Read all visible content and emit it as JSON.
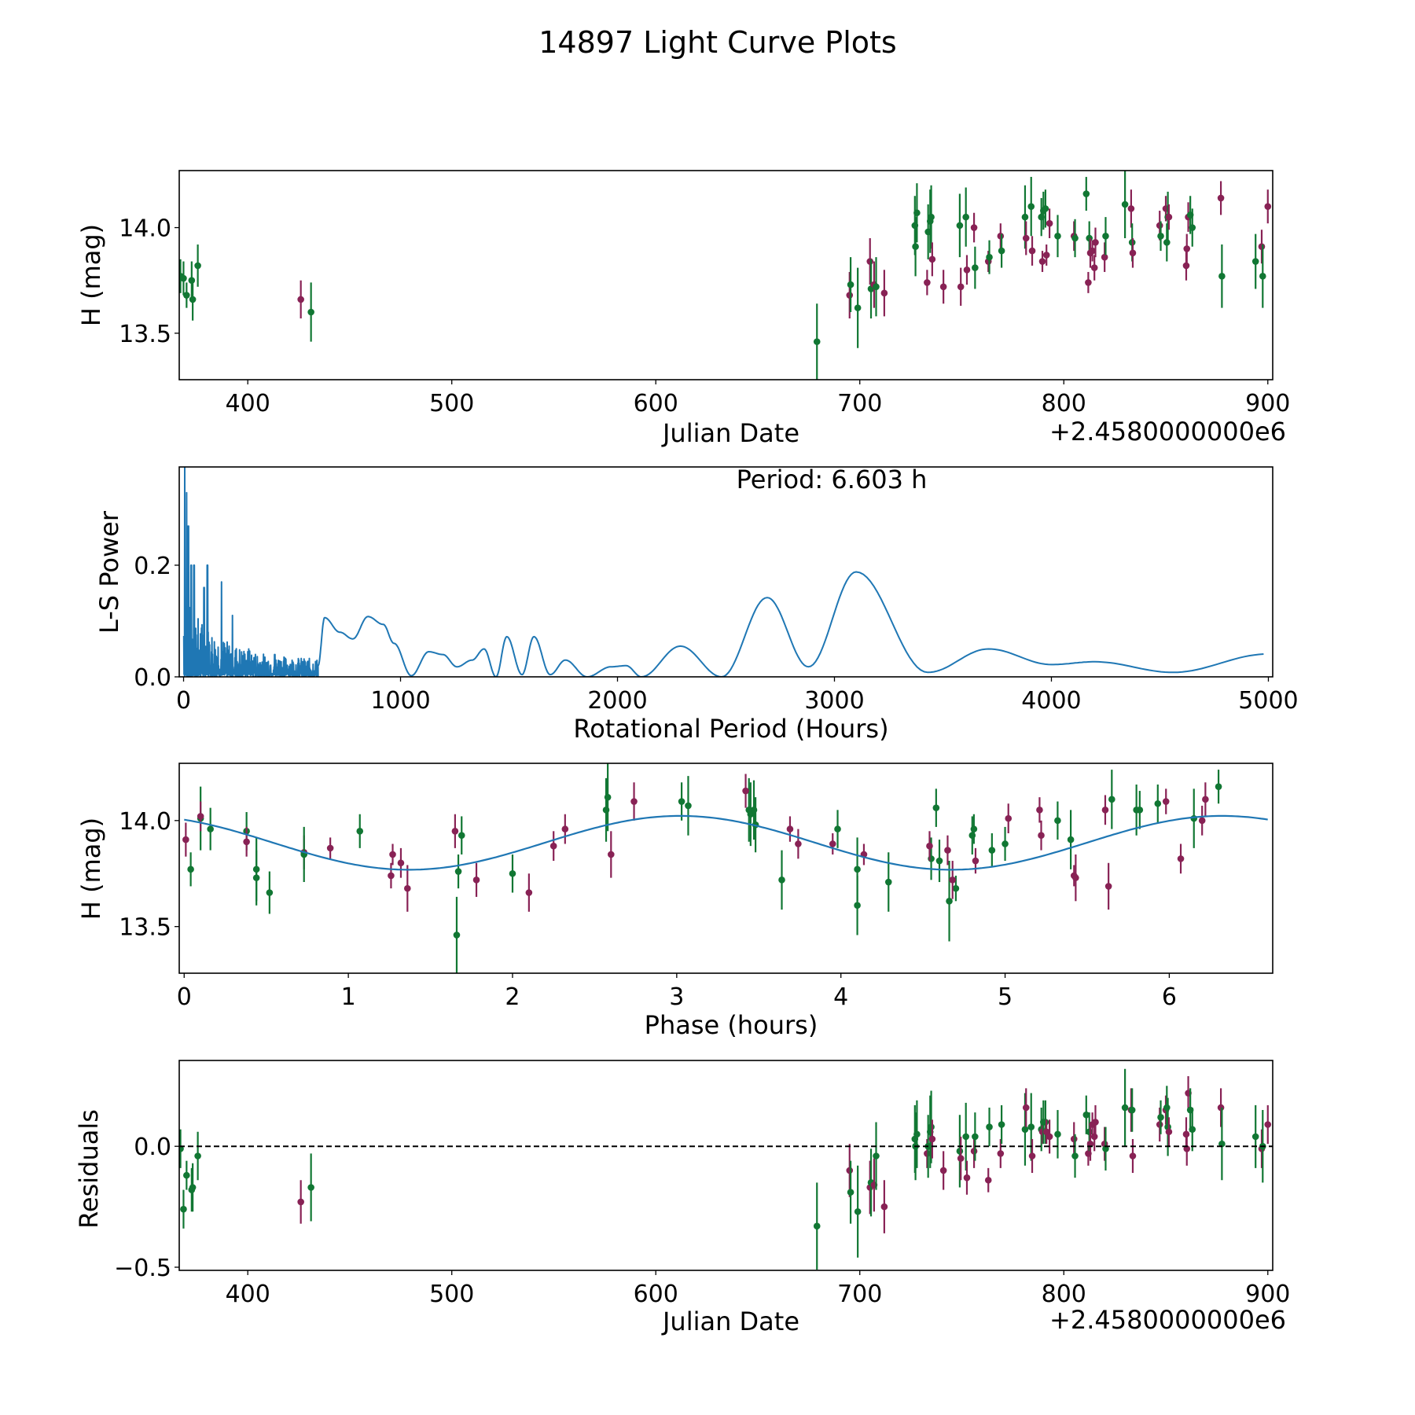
{
  "title": "14897 Light Curve Plots",
  "colors": {
    "filter_a": "#117733",
    "filter_b": "#882255",
    "model": "#1f77b4",
    "frame": "#000000"
  },
  "chart_data": [
    {
      "id": "lightcurve",
      "type": "scatter",
      "title": "",
      "xlabel": "Julian Date",
      "ylabel": "H (mag)",
      "x_offset_label": "+2.4580000000e6",
      "xlim": [
        366.4,
        902.4
      ],
      "ylim": [
        13.28,
        14.27
      ],
      "xticks": [
        400,
        500,
        600,
        700,
        800,
        900
      ],
      "xtick_labels": [
        "400",
        "500",
        "600",
        "700",
        "800",
        "900"
      ],
      "yticks": [
        13.5,
        14.0
      ],
      "ytick_labels": [
        "13.5",
        "14.0"
      ],
      "series_ref": "observations"
    },
    {
      "id": "periodogram",
      "type": "line",
      "xlabel": "Rotational Period (Hours)",
      "ylabel": "L-S Power",
      "annotation": "Period: 6.603 h",
      "xlim": [
        -20,
        5020
      ],
      "ylim": [
        0,
        0.376
      ],
      "xticks": [
        0,
        1000,
        2000,
        3000,
        4000,
        5000
      ],
      "xtick_labels": [
        "0",
        "1000",
        "2000",
        "3000",
        "4000",
        "5000"
      ],
      "yticks": [
        0.0,
        0.2
      ],
      "ytick_labels": [
        "0.0",
        "0.2"
      ],
      "smooth_peaks": [
        {
          "x": 650,
          "y": 0.106
        },
        {
          "x": 720,
          "y": 0.08
        },
        {
          "x": 780,
          "y": 0.068
        },
        {
          "x": 850,
          "y": 0.108
        },
        {
          "x": 920,
          "y": 0.094
        },
        {
          "x": 970,
          "y": 0.06
        },
        {
          "x": 1130,
          "y": 0.045
        },
        {
          "x": 1195,
          "y": 0.04
        },
        {
          "x": 1260,
          "y": 0.018
        },
        {
          "x": 1330,
          "y": 0.03
        },
        {
          "x": 1385,
          "y": 0.05
        },
        {
          "x": 1490,
          "y": 0.072
        },
        {
          "x": 1615,
          "y": 0.072
        },
        {
          "x": 1760,
          "y": 0.03
        },
        {
          "x": 1970,
          "y": 0.018
        },
        {
          "x": 2040,
          "y": 0.02
        },
        {
          "x": 2290,
          "y": 0.055
        },
        {
          "x": 2690,
          "y": 0.142
        },
        {
          "x": 3100,
          "y": 0.188
        },
        {
          "x": 3710,
          "y": 0.05
        },
        {
          "x": 4200,
          "y": 0.027
        },
        {
          "x": 5000,
          "y": 0.041
        }
      ],
      "smooth_troughs": [
        {
          "x": 1050,
          "y": 0.002
        },
        {
          "x": 1440,
          "y": 0.0
        },
        {
          "x": 1560,
          "y": 0.004
        },
        {
          "x": 1690,
          "y": 0.004
        },
        {
          "x": 1860,
          "y": 0.0
        },
        {
          "x": 2110,
          "y": 0.0
        },
        {
          "x": 2480,
          "y": 0.0
        },
        {
          "x": 2880,
          "y": 0.018
        },
        {
          "x": 3430,
          "y": 0.008
        },
        {
          "x": 4000,
          "y": 0.022
        },
        {
          "x": 4560,
          "y": 0.008
        }
      ],
      "noise_region": {
        "x_end": 620,
        "max_power": 0.376,
        "notable_spikes": [
          {
            "x": 5,
            "y": 0.376
          },
          {
            "x": 14,
            "y": 0.33
          },
          {
            "x": 22,
            "y": 0.27
          },
          {
            "x": 35,
            "y": 0.2
          },
          {
            "x": 48,
            "y": 0.2
          },
          {
            "x": 95,
            "y": 0.16
          },
          {
            "x": 110,
            "y": 0.2
          },
          {
            "x": 175,
            "y": 0.17
          },
          {
            "x": 225,
            "y": 0.11
          },
          {
            "x": 300,
            "y": 0.05
          },
          {
            "x": 420,
            "y": 0.04
          }
        ]
      }
    },
    {
      "id": "phased",
      "type": "scatter",
      "xlabel": "Phase (hours)",
      "ylabel": "H (mag)",
      "xlim": [
        -0.03,
        6.63
      ],
      "ylim": [
        13.28,
        14.27
      ],
      "xticks": [
        0,
        1,
        2,
        3,
        4,
        5,
        6
      ],
      "xtick_labels": [
        "0",
        "1",
        "2",
        "3",
        "4",
        "5",
        "6"
      ],
      "yticks": [
        13.5,
        14.0
      ],
      "ytick_labels": [
        "13.5",
        "14.0"
      ],
      "model": {
        "period_h": 6.603,
        "mean": 13.895,
        "amplitude": 0.127,
        "peak_phase_h": 3.02,
        "harmonics": 2
      }
    },
    {
      "id": "residuals",
      "type": "scatter",
      "xlabel": "Julian Date",
      "ylabel": "Residuals",
      "x_offset_label": "+2.4580000000e6",
      "xlim": [
        366.4,
        902.4
      ],
      "ylim": [
        -0.513,
        0.355
      ],
      "xticks": [
        400,
        500,
        600,
        700,
        800,
        900
      ],
      "xtick_labels": [
        "400",
        "500",
        "600",
        "700",
        "800",
        "900"
      ],
      "yticks": [
        -0.5,
        0.0
      ],
      "ytick_labels": [
        "−0.5",
        "0.0"
      ],
      "zero_line": true
    }
  ],
  "observations": [
    {
      "jd": 367.0,
      "mag": 13.77,
      "err": 0.08,
      "f": "a",
      "ph": 0.04,
      "res": -0.01
    },
    {
      "jd": 368.5,
      "mag": 13.76,
      "err": 0.08,
      "f": "a",
      "ph": 1.67,
      "res": -0.26
    },
    {
      "jd": 370.0,
      "mag": 13.68,
      "err": 0.06,
      "f": "a",
      "ph": 4.7,
      "res": -0.12
    },
    {
      "jd": 372.5,
      "mag": 13.75,
      "err": 0.09,
      "f": "a",
      "ph": 2.0,
      "res": -0.18
    },
    {
      "jd": 373.0,
      "mag": 13.66,
      "err": 0.1,
      "f": "a",
      "ph": 0.52,
      "res": -0.17
    },
    {
      "jd": 375.5,
      "mag": 13.82,
      "err": 0.1,
      "f": "a",
      "ph": 4.55,
      "res": -0.04
    },
    {
      "jd": 426.0,
      "mag": 13.66,
      "err": 0.09,
      "f": "b",
      "ph": 2.1,
      "res": -0.23
    },
    {
      "jd": 431.0,
      "mag": 13.6,
      "err": 0.14,
      "f": "a",
      "ph": 4.1,
      "res": -0.17
    },
    {
      "jd": 679.0,
      "mag": 13.46,
      "err": 0.18,
      "f": "a",
      "ph": 1.66,
      "res": -0.33
    },
    {
      "jd": 695.0,
      "mag": 13.68,
      "err": 0.11,
      "f": "b",
      "ph": 1.36,
      "res": -0.1
    },
    {
      "jd": 695.5,
      "mag": 13.73,
      "err": 0.13,
      "f": "a",
      "ph": 0.44,
      "res": -0.19
    },
    {
      "jd": 699.0,
      "mag": 13.62,
      "err": 0.19,
      "f": "a",
      "ph": 4.66,
      "res": -0.27
    },
    {
      "jd": 705.0,
      "mag": 13.84,
      "err": 0.11,
      "f": "b",
      "ph": 2.6,
      "res": -0.17
    },
    {
      "jd": 705.5,
      "mag": 13.71,
      "err": 0.14,
      "f": "a",
      "ph": 4.29,
      "res": -0.15
    },
    {
      "jd": 707.0,
      "mag": 13.73,
      "err": 0.11,
      "f": "b",
      "ph": 5.43,
      "res": -0.16
    },
    {
      "jd": 708.0,
      "mag": 13.72,
      "err": 0.14,
      "f": "a",
      "ph": 3.64,
      "res": -0.04
    },
    {
      "jd": 712.0,
      "mag": 13.69,
      "err": 0.11,
      "f": "b",
      "ph": 5.63,
      "res": -0.25
    },
    {
      "jd": 727.0,
      "mag": 14.01,
      "err": 0.14,
      "f": "a",
      "ph": 6.15,
      "res": 0.03
    },
    {
      "jd": 727.3,
      "mag": 13.91,
      "err": 0.14,
      "f": "a",
      "ph": 5.4,
      "res": 0.0
    },
    {
      "jd": 728.0,
      "mag": 14.07,
      "err": 0.14,
      "f": "a",
      "ph": 3.07,
      "res": 0.05
    },
    {
      "jd": 733.0,
      "mag": 13.74,
      "err": 0.06,
      "f": "b",
      "ph": 1.26,
      "res": -0.03
    },
    {
      "jd": 733.5,
      "mag": 13.98,
      "err": 0.13,
      "f": "a",
      "ph": 3.48,
      "res": 0.0
    },
    {
      "jd": 734.5,
      "mag": 14.03,
      "err": 0.15,
      "f": "a",
      "ph": 3.45,
      "res": 0.06
    },
    {
      "jd": 735.0,
      "mag": 14.05,
      "err": 0.15,
      "f": "a",
      "ph": 2.57,
      "res": 0.08
    },
    {
      "jd": 735.5,
      "mag": 13.85,
      "err": 0.08,
      "f": "b",
      "ph": 0.73,
      "res": 0.03
    },
    {
      "jd": 741.0,
      "mag": 13.72,
      "err": 0.08,
      "f": "b",
      "ph": 1.78,
      "res": -0.1
    },
    {
      "jd": 749.0,
      "mag": 14.01,
      "err": 0.15,
      "f": "a",
      "ph": 0.1,
      "res": -0.02
    },
    {
      "jd": 749.5,
      "mag": 13.72,
      "err": 0.09,
      "f": "b",
      "ph": 4.68,
      "res": -0.05
    },
    {
      "jd": 752.0,
      "mag": 14.05,
      "err": 0.14,
      "f": "a",
      "ph": 3.47,
      "res": 0.04
    },
    {
      "jd": 752.5,
      "mag": 13.8,
      "err": 0.07,
      "f": "b",
      "ph": 1.32,
      "res": -0.13
    },
    {
      "jd": 756.0,
      "mag": 14.0,
      "err": 0.07,
      "f": "b",
      "ph": 6.2,
      "res": -0.02
    },
    {
      "jd": 756.5,
      "mag": 13.81,
      "err": 0.1,
      "f": "a",
      "ph": 4.6,
      "res": 0.04
    },
    {
      "jd": 763.0,
      "mag": 13.84,
      "err": 0.05,
      "f": "b",
      "ph": 4.14,
      "res": -0.14
    },
    {
      "jd": 763.5,
      "mag": 13.86,
      "err": 0.08,
      "f": "a",
      "ph": 4.92,
      "res": 0.08
    },
    {
      "jd": 769.0,
      "mag": 13.96,
      "err": 0.06,
      "f": "b",
      "ph": 3.69,
      "res": -0.03
    },
    {
      "jd": 769.5,
      "mag": 13.89,
      "err": 0.08,
      "f": "a",
      "ph": 5.0,
      "res": 0.09
    },
    {
      "jd": 781.0,
      "mag": 14.05,
      "err": 0.15,
      "f": "a",
      "ph": 3.44,
      "res": 0.07
    },
    {
      "jd": 781.5,
      "mag": 13.95,
      "err": 0.08,
      "f": "b",
      "ph": 1.65,
      "res": 0.16
    },
    {
      "jd": 784.0,
      "mag": 14.1,
      "err": 0.14,
      "f": "a",
      "ph": 5.65,
      "res": 0.08
    },
    {
      "jd": 784.5,
      "mag": 13.89,
      "err": 0.07,
      "f": "b",
      "ph": 3.74,
      "res": -0.04
    },
    {
      "jd": 789.0,
      "mag": 14.05,
      "err": 0.09,
      "f": "a",
      "ph": 5.82,
      "res": 0.07
    },
    {
      "jd": 789.5,
      "mag": 13.84,
      "err": 0.05,
      "f": "b",
      "ph": 1.27,
      "res": 0.06
    },
    {
      "jd": 790.0,
      "mag": 14.08,
      "err": 0.09,
      "f": "a",
      "ph": 5.93,
      "res": 0.1
    },
    {
      "jd": 791.0,
      "mag": 14.09,
      "err": 0.09,
      "f": "a",
      "ph": 3.03,
      "res": 0.1
    },
    {
      "jd": 791.5,
      "mag": 13.87,
      "err": 0.05,
      "f": "b",
      "ph": 0.89,
      "res": 0.06
    },
    {
      "jd": 793.0,
      "mag": 14.02,
      "err": 0.07,
      "f": "b",
      "ph": 0.1,
      "res": 0.04
    },
    {
      "jd": 797.0,
      "mag": 13.96,
      "err": 0.1,
      "f": "a",
      "ph": 0.16,
      "res": 0.05
    },
    {
      "jd": 805.0,
      "mag": 13.96,
      "err": 0.07,
      "f": "b",
      "ph": 2.32,
      "res": 0.03
    },
    {
      "jd": 805.5,
      "mag": 13.95,
      "err": 0.09,
      "f": "a",
      "ph": 0.38,
      "res": -0.04
    },
    {
      "jd": 811.0,
      "mag": 14.16,
      "err": 0.08,
      "f": "a",
      "ph": 6.3,
      "res": 0.13
    },
    {
      "jd": 812.0,
      "mag": 13.74,
      "err": 0.05,
      "f": "b",
      "ph": 5.42,
      "res": -0.03
    },
    {
      "jd": 812.5,
      "mag": 13.95,
      "err": 0.08,
      "f": "a",
      "ph": 1.07,
      "res": 0.06
    },
    {
      "jd": 813.0,
      "mag": 13.88,
      "err": 0.07,
      "f": "b",
      "ph": 2.25,
      "res": 0.01
    },
    {
      "jd": 814.0,
      "mag": 13.89,
      "err": 0.05,
      "f": "b",
      "ph": 3.95,
      "res": 0.09
    },
    {
      "jd": 815.0,
      "mag": 13.81,
      "err": 0.06,
      "f": "b",
      "ph": 4.82,
      "res": 0.04
    },
    {
      "jd": 815.5,
      "mag": 13.93,
      "err": 0.07,
      "f": "b",
      "ph": 5.22,
      "res": 0.1
    },
    {
      "jd": 820.0,
      "mag": 13.86,
      "err": 0.07,
      "f": "b",
      "ph": 4.65,
      "res": 0.01
    },
    {
      "jd": 820.5,
      "mag": 13.96,
      "err": 0.09,
      "f": "a",
      "ph": 3.98,
      "res": -0.01
    },
    {
      "jd": 830.0,
      "mag": 14.11,
      "err": 0.16,
      "f": "a",
      "ph": 2.58,
      "res": 0.16
    },
    {
      "jd": 833.0,
      "mag": 14.09,
      "err": 0.09,
      "f": "b",
      "ph": 2.74,
      "res": 0.15
    },
    {
      "jd": 833.5,
      "mag": 13.93,
      "err": 0.09,
      "f": "a",
      "ph": 1.69,
      "res": 0.15
    },
    {
      "jd": 833.8,
      "mag": 13.88,
      "err": 0.07,
      "f": "b",
      "ph": 4.54,
      "res": -0.04
    },
    {
      "jd": 847.0,
      "mag": 14.01,
      "err": 0.07,
      "f": "b",
      "ph": 5.02,
      "res": 0.09
    },
    {
      "jd": 847.5,
      "mag": 13.96,
      "err": 0.07,
      "f": "a",
      "ph": 4.81,
      "res": 0.12
    },
    {
      "jd": 850.0,
      "mag": 14.09,
      "err": 0.06,
      "f": "b",
      "ph": 5.98,
      "res": 0.15
    },
    {
      "jd": 850.5,
      "mag": 13.93,
      "err": 0.09,
      "f": "a",
      "ph": 4.8,
      "res": 0.16
    },
    {
      "jd": 851.0,
      "mag": 14.05,
      "err": 0.12,
      "f": "a",
      "ph": 5.8,
      "res": 0.08
    },
    {
      "jd": 851.5,
      "mag": 14.05,
      "err": 0.06,
      "f": "b",
      "ph": 5.21,
      "res": 0.06
    },
    {
      "jd": 860.0,
      "mag": 13.82,
      "err": 0.07,
      "f": "b",
      "ph": 6.07,
      "res": 0.05
    },
    {
      "jd": 860.3,
      "mag": 13.9,
      "err": 0.07,
      "f": "b",
      "ph": 0.38,
      "res": -0.01
    },
    {
      "jd": 861.0,
      "mag": 14.05,
      "err": 0.07,
      "f": "b",
      "ph": 5.61,
      "res": 0.22
    },
    {
      "jd": 862.0,
      "mag": 14.06,
      "err": 0.09,
      "f": "a",
      "ph": 4.58,
      "res": 0.15
    },
    {
      "jd": 863.0,
      "mag": 14.0,
      "err": 0.09,
      "f": "a",
      "ph": 5.32,
      "res": 0.07
    },
    {
      "jd": 877.0,
      "mag": 14.14,
      "err": 0.08,
      "f": "b",
      "ph": 3.42,
      "res": 0.16
    },
    {
      "jd": 877.5,
      "mag": 13.77,
      "err": 0.15,
      "f": "a",
      "ph": 4.1,
      "res": 0.01
    },
    {
      "jd": 894.0,
      "mag": 13.84,
      "err": 0.13,
      "f": "a",
      "ph": 0.73,
      "res": 0.04
    },
    {
      "jd": 897.0,
      "mag": 13.91,
      "err": 0.08,
      "f": "b",
      "ph": 0.01,
      "res": -0.01
    },
    {
      "jd": 897.5,
      "mag": 13.77,
      "err": 0.15,
      "f": "a",
      "ph": 0.44,
      "res": 0.0
    },
    {
      "jd": 900.0,
      "mag": 14.1,
      "err": 0.08,
      "f": "b",
      "ph": 6.22,
      "res": 0.09
    }
  ]
}
